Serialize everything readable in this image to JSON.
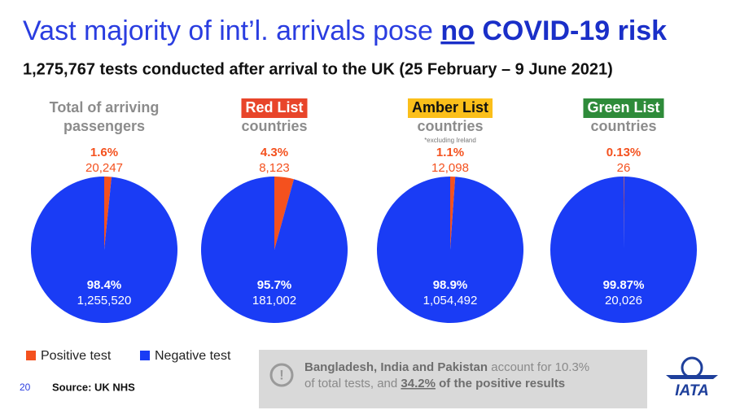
{
  "title": {
    "parts": [
      "Vast majority of int’l. arrivals pose ",
      "no",
      " COVID-19 risk"
    ]
  },
  "subtitle": "1,275,767 tests conducted after arrival to the UK (25 February – 9 June 2021)",
  "legend": {
    "categories": [
      "Positive test",
      "Negative test"
    ],
    "colors": [
      "#f4511e",
      "#1a3cf5"
    ]
  },
  "chart_data": [
    {
      "type": "pie",
      "title": "Total of arriving passengers",
      "values": [
        1.6,
        98.4
      ],
      "value_labels": [
        "1.6%",
        "98.4%"
      ],
      "counts": [
        20247,
        1255520
      ],
      "count_labels": [
        "20,247",
        "1,255,520"
      ]
    },
    {
      "type": "pie",
      "badge": "Red List",
      "badge_color": "#e8452a",
      "badge_text_color": "#ffffff",
      "subtitle": "countries",
      "values": [
        4.3,
        95.7
      ],
      "value_labels": [
        "4.3%",
        "95.7%"
      ],
      "counts": [
        8123,
        181002
      ],
      "count_labels": [
        "8,123",
        "181,002"
      ]
    },
    {
      "type": "pie",
      "badge": "Amber List",
      "badge_color": "#fbbf1a",
      "badge_text_color": "#111111",
      "subtitle": "countries",
      "note": "*excluding Ireland",
      "values": [
        1.1,
        98.9
      ],
      "value_labels": [
        "1.1%",
        "98.9%"
      ],
      "counts": [
        12098,
        1054492
      ],
      "count_labels": [
        "12,098",
        "1,054,492"
      ]
    },
    {
      "type": "pie",
      "badge": "Green List",
      "badge_color": "#2e8b3a",
      "badge_text_color": "#ffffff",
      "subtitle": "countries",
      "values": [
        0.13,
        99.87
      ],
      "value_labels": [
        "0.13%",
        "99.87%"
      ],
      "counts": [
        26,
        20026
      ],
      "count_labels": [
        "26",
        "20,026"
      ]
    }
  ],
  "note": {
    "icon": "!",
    "parts": [
      "Bangladesh, India and Pakistan",
      " account for 10.3%",
      "of total tests, and ",
      "34.2%",
      " of the positive results"
    ]
  },
  "page_number": "20",
  "source": "Source: UK NHS",
  "logo": "IATA"
}
